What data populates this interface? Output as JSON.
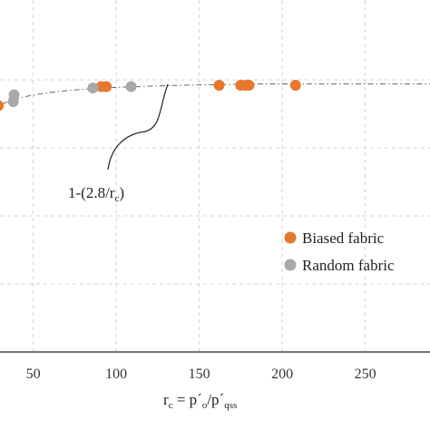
{
  "chart_data": {
    "type": "scatter",
    "x_ticks": [
      50,
      100,
      150,
      200,
      250
    ],
    "xlim": [
      30,
      310
    ],
    "ylim": [
      0.0,
      1.1
    ],
    "grid": true,
    "xlabel": {
      "main": "r",
      "main_sub": "c",
      "eq": " = p´",
      "eq_sub": "o",
      "slash": "/p´",
      "slash_sub": "qss"
    },
    "series": [
      {
        "name": "Biased fabric",
        "color": "#e8772e",
        "points": [
          {
            "x": 29,
            "y": 0.905
          },
          {
            "x": 91,
            "y": 0.975
          },
          {
            "x": 94,
            "y": 0.975
          },
          {
            "x": 162,
            "y": 0.98
          },
          {
            "x": 175,
            "y": 0.98
          },
          {
            "x": 178,
            "y": 0.98
          },
          {
            "x": 180,
            "y": 0.98
          },
          {
            "x": 208,
            "y": 0.98
          }
        ]
      },
      {
        "name": "Random fabric",
        "color": "#a9a9a9",
        "points": [
          {
            "x": 38,
            "y": 0.92
          },
          {
            "x": 38.5,
            "y": 0.945
          },
          {
            "x": 86,
            "y": 0.97
          },
          {
            "x": 109,
            "y": 0.975
          }
        ]
      }
    ],
    "fit": {
      "label_main": "1-(2.8/r",
      "label_sub": "c",
      "label_close": ")",
      "coefficient": 2.8,
      "style": "dash-dot",
      "color": "#666666"
    },
    "legend": {
      "placement": "right"
    }
  }
}
